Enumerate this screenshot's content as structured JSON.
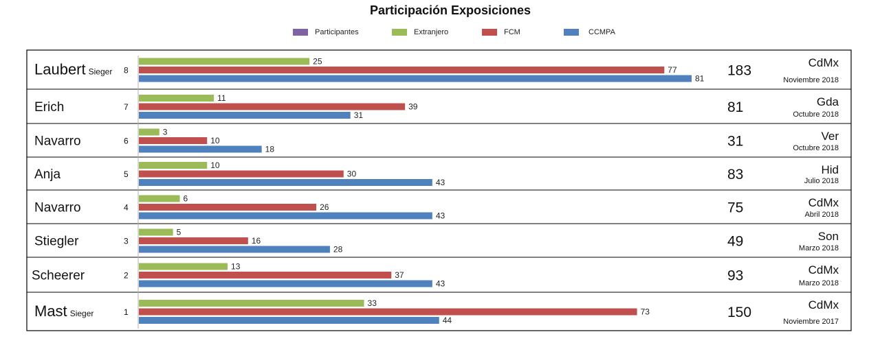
{
  "chart_data": {
    "type": "bar",
    "orientation": "horizontal",
    "title": "Participación Exposiciones",
    "legend": [
      {
        "name": "Participantes",
        "color": "#8064a2"
      },
      {
        "name": "Extranjero",
        "color": "#9bbb59"
      },
      {
        "name": "FCM",
        "color": "#c0504d"
      },
      {
        "name": "CCMPA",
        "color": "#4f81bd"
      }
    ],
    "xlim": [
      0,
      100
    ],
    "grid": false,
    "legend_position": "top",
    "rows": [
      {
        "name": "Laubert",
        "note": "Sieger",
        "index": "8",
        "extranjero": 25,
        "fcm": 77,
        "ccmpa": 81,
        "total": "183",
        "city": "CdMx",
        "date": "Noviembre 2018"
      },
      {
        "name": "Erich",
        "note": "",
        "index": "7",
        "extranjero": 11,
        "fcm": 39,
        "ccmpa": 31,
        "total": "81",
        "city": "Gda",
        "date": "Octubre 2018"
      },
      {
        "name": "Navarro",
        "note": "",
        "index": "6",
        "extranjero": 3,
        "fcm": 10,
        "ccmpa": 18,
        "total": "31",
        "city": "Ver",
        "date": "Octubre 2018"
      },
      {
        "name": "Anja",
        "note": "",
        "index": "5",
        "extranjero": 10,
        "fcm": 30,
        "ccmpa": 43,
        "total": "83",
        "city": "Hid",
        "date": "Julio 2018"
      },
      {
        "name": "Navarro",
        "note": "",
        "index": "4",
        "extranjero": 6,
        "fcm": 26,
        "ccmpa": 43,
        "total": "75",
        "city": "CdMx",
        "date": "Abril 2018"
      },
      {
        "name": "Stiegler",
        "note": "",
        "index": "3",
        "extranjero": 5,
        "fcm": 16,
        "ccmpa": 28,
        "total": "49",
        "city": "Son",
        "date": "Marzo 2018"
      },
      {
        "name": "Scheerer",
        "note": "",
        "index": "2",
        "extranjero": 13,
        "fcm": 37,
        "ccmpa": 43,
        "total": "93",
        "city": "CdMx",
        "date": "Marzo 2018"
      },
      {
        "name": "Mast",
        "note": "Sieger",
        "index": "1",
        "extranjero": 33,
        "fcm": 73,
        "ccmpa": 44,
        "total": "150",
        "city": "CdMx",
        "date": "Noviembre 2017"
      }
    ]
  }
}
